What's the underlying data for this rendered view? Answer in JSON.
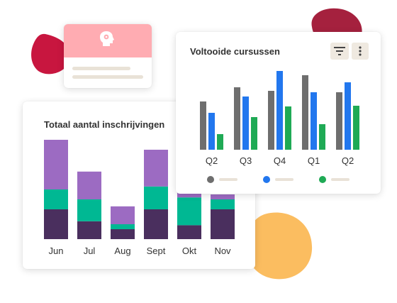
{
  "colors": {
    "dark_purple": "#4a2f5e",
    "teal": "#00b893",
    "lavender": "#9c6bc2",
    "gray": "#6e6e6e",
    "blue": "#2277ee",
    "green": "#1faa55",
    "pink_header": "#ffacb2",
    "crimson": "#c8163f",
    "wine": "#a5213e",
    "orange": "#fbbd60"
  },
  "profile_card": {
    "icon": "head-gear-icon"
  },
  "header_icons": {
    "filter": "filter-icon",
    "more": "more-vertical-icon"
  },
  "chart_data": [
    {
      "type": "bar",
      "stacked": true,
      "title": "Totaal aantal inschrijvingen",
      "categories": [
        "Jun",
        "Jul",
        "Aug",
        "Sept",
        "Okt",
        "Nov"
      ],
      "series": [
        {
          "color": "#4a2f5e",
          "values": [
            30,
            18,
            10,
            30,
            14,
            30
          ]
        },
        {
          "color": "#00b893",
          "values": [
            20,
            22,
            5,
            23,
            28,
            10
          ]
        },
        {
          "color": "#9c6bc2",
          "values": [
            50,
            28,
            18,
            37,
            8,
            5
          ]
        }
      ],
      "ylim": [
        0,
        100
      ],
      "grid": false
    },
    {
      "type": "bar",
      "title": "Voltooide cursussen",
      "categories": [
        "Q2",
        "Q3",
        "Q4",
        "Q1",
        "Q2"
      ],
      "series": [
        {
          "color": "#6e6e6e",
          "values": [
            68,
            88,
            83,
            105,
            81
          ]
        },
        {
          "color": "#2277ee",
          "values": [
            52,
            75,
            111,
            81,
            95
          ]
        },
        {
          "color": "#1faa55",
          "values": [
            22,
            46,
            61,
            36,
            62
          ]
        }
      ],
      "ylim": [
        0,
        115
      ],
      "legend": "bottom",
      "grid": false
    }
  ]
}
